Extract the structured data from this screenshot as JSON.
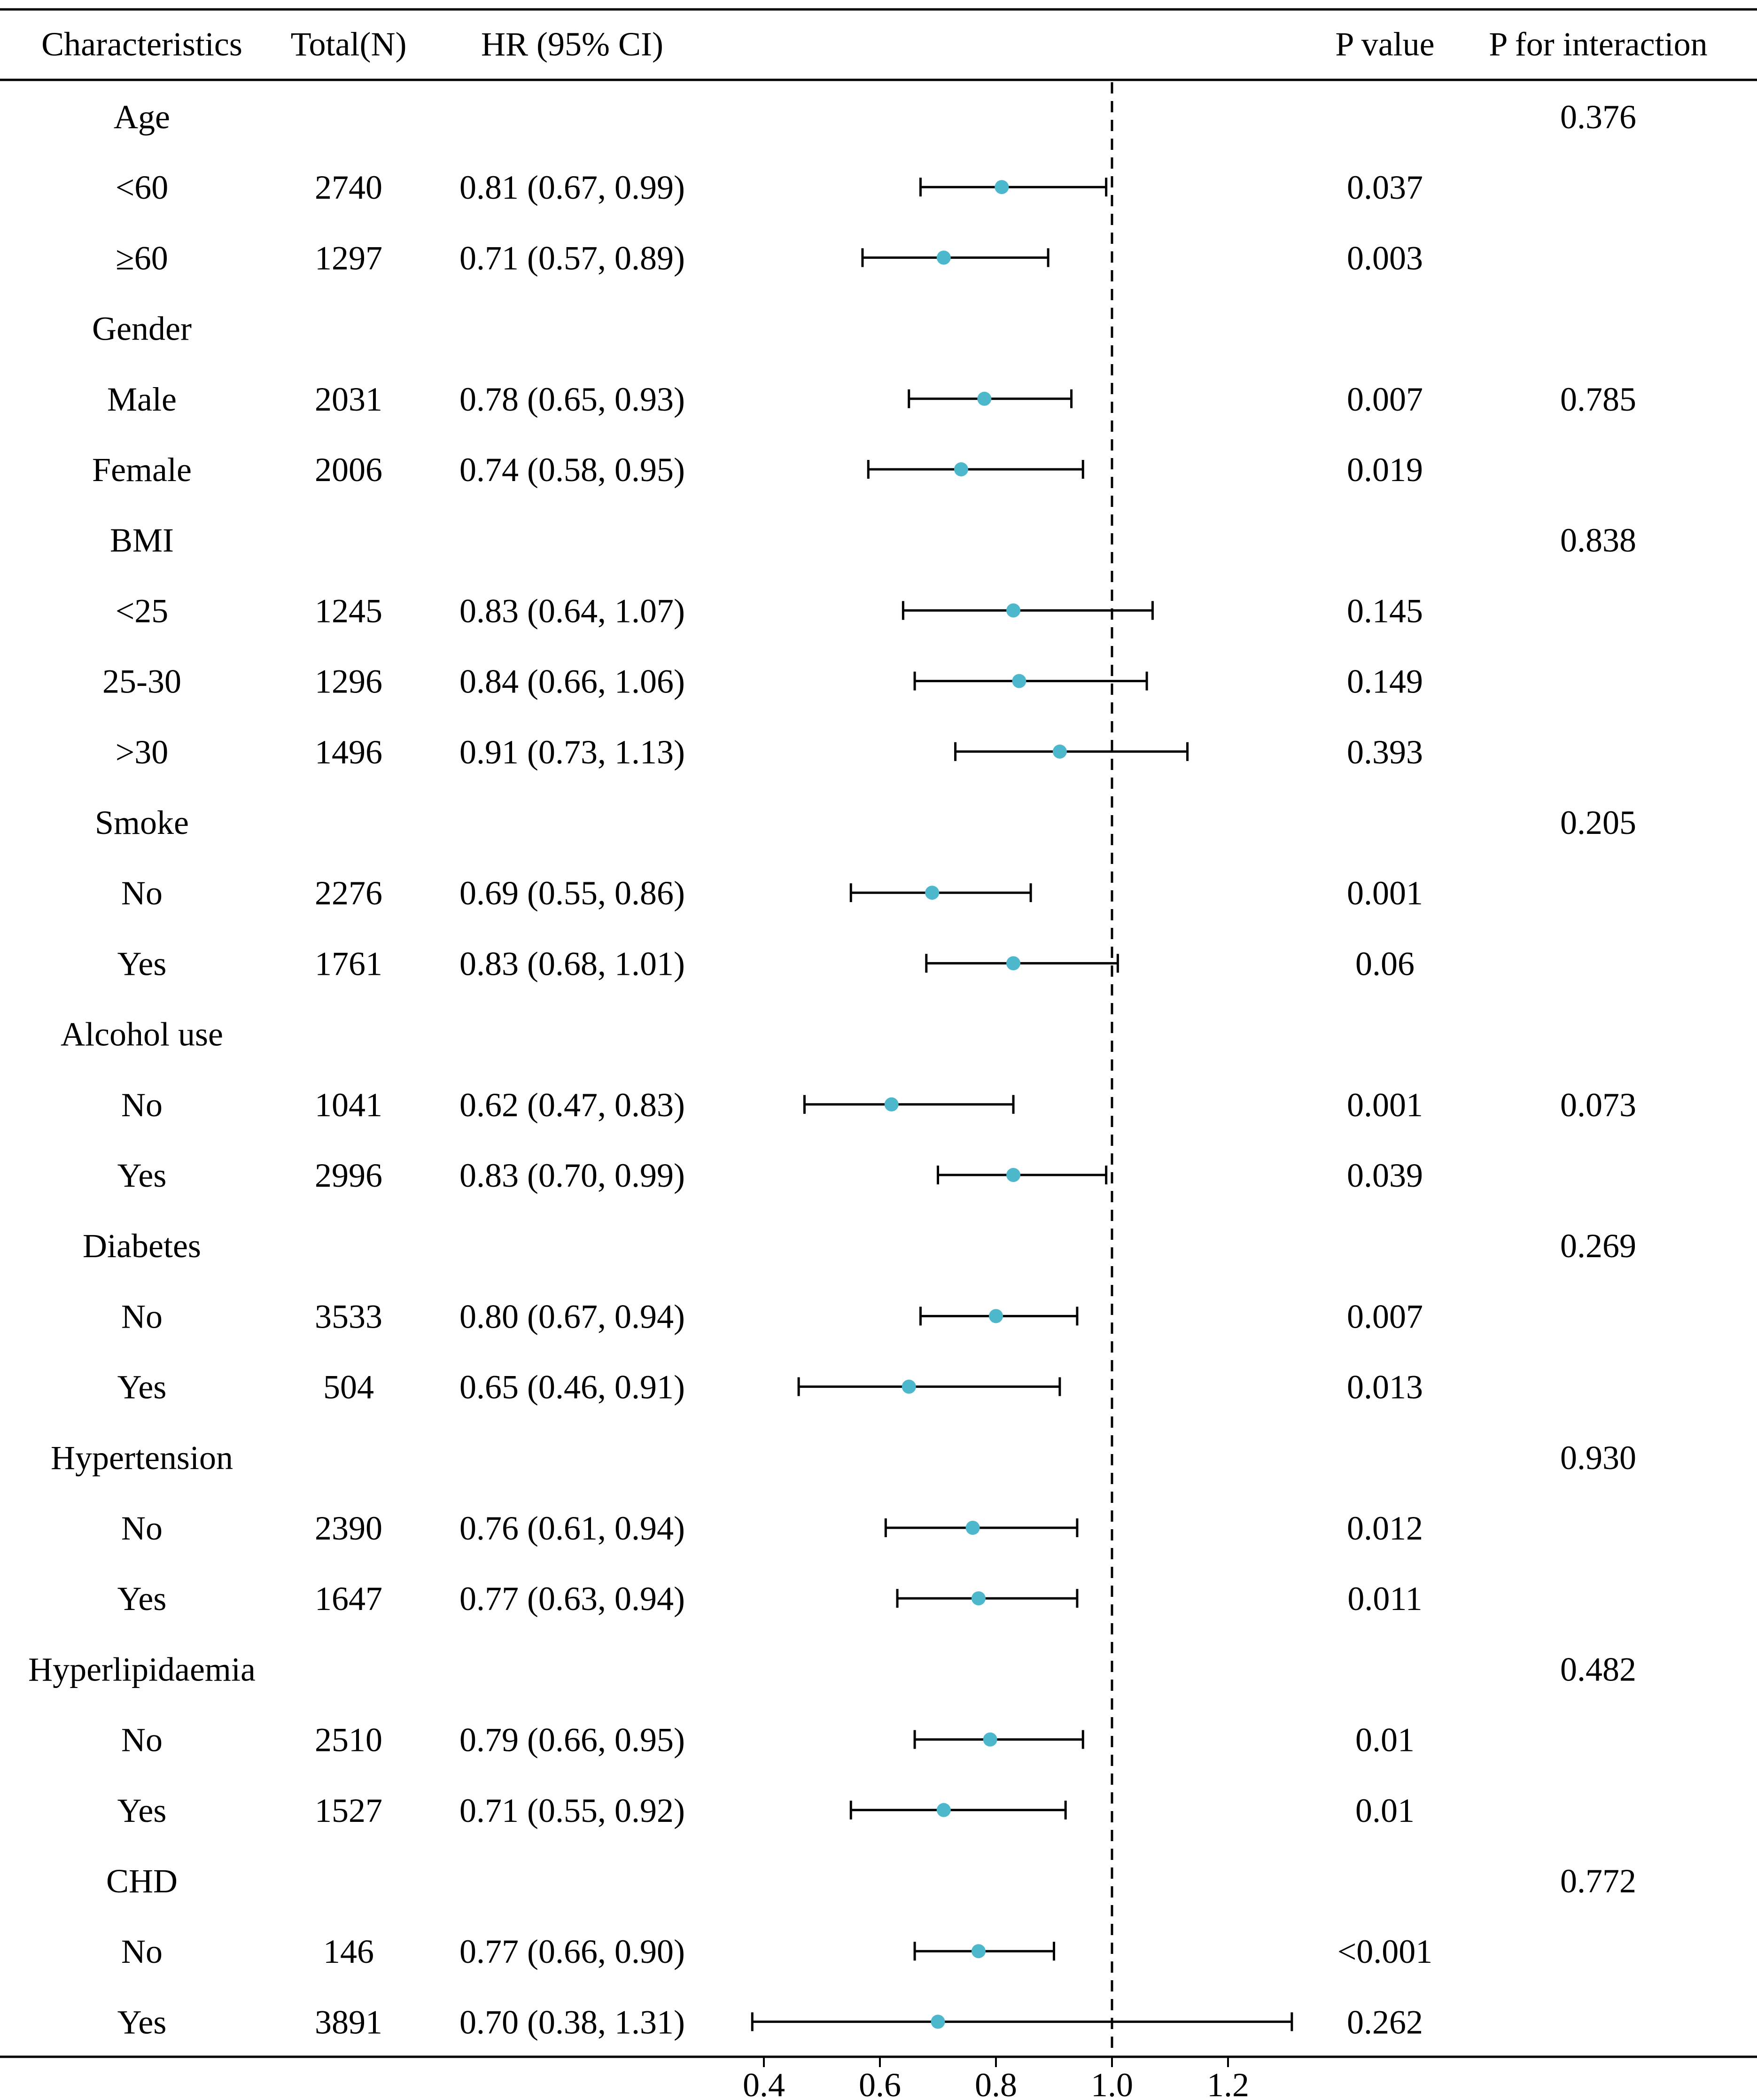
{
  "chart_data": {
    "type": "forest",
    "title": "",
    "columns": [
      "Characteristics",
      "Total(N)",
      "HR (95% CI)",
      "P value",
      "P for interaction"
    ],
    "reference_value": 1.0,
    "reference_label": "1.0",
    "x_ticks": [
      0.4,
      0.6,
      0.8,
      1.0,
      1.2
    ],
    "x_tick_labels": [
      "0.4",
      "0.6",
      "0.8",
      "1.0",
      "1.2"
    ],
    "xlim": [
      0.35,
      1.33
    ],
    "colors": {
      "point": "#4db8cc",
      "line": "#000000",
      "reference": "#000000"
    },
    "rows": [
      {
        "label": "Age",
        "group": true,
        "p_interaction": "0.376"
      },
      {
        "label": "<60",
        "n": "2740",
        "hr_text": "0.81 (0.67, 0.99)",
        "hr": 0.81,
        "lower": 0.67,
        "upper": 0.99,
        "p": "0.037"
      },
      {
        "label": "≥60",
        "n": "1297",
        "hr_text": "0.71 (0.57, 0.89)",
        "hr": 0.71,
        "lower": 0.57,
        "upper": 0.89,
        "p": "0.003"
      },
      {
        "label": "Gender",
        "group": true
      },
      {
        "label": "Male",
        "n": "2031",
        "hr_text": "0.78 (0.65, 0.93)",
        "hr": 0.78,
        "lower": 0.65,
        "upper": 0.93,
        "p": "0.007",
        "p_interaction": "0.785"
      },
      {
        "label": "Female",
        "n": "2006",
        "hr_text": "0.74 (0.58, 0.95)",
        "hr": 0.74,
        "lower": 0.58,
        "upper": 0.95,
        "p": "0.019"
      },
      {
        "label": "BMI",
        "group": true,
        "p_interaction": "0.838"
      },
      {
        "label": "<25",
        "n": "1245",
        "hr_text": "0.83 (0.64, 1.07)",
        "hr": 0.83,
        "lower": 0.64,
        "upper": 1.07,
        "p": "0.145"
      },
      {
        "label": "25-30",
        "n": "1296",
        "hr_text": "0.84 (0.66, 1.06)",
        "hr": 0.84,
        "lower": 0.66,
        "upper": 1.06,
        "p": "0.149"
      },
      {
        "label": ">30",
        "n": "1496",
        "hr_text": "0.91 (0.73, 1.13)",
        "hr": 0.91,
        "lower": 0.73,
        "upper": 1.13,
        "p": "0.393"
      },
      {
        "label": "Smoke",
        "group": true,
        "p_interaction": "0.205"
      },
      {
        "label": "No",
        "n": "2276",
        "hr_text": "0.69 (0.55, 0.86)",
        "hr": 0.69,
        "lower": 0.55,
        "upper": 0.86,
        "p": "0.001"
      },
      {
        "label": "Yes",
        "n": "1761",
        "hr_text": "0.83 (0.68, 1.01)",
        "hr": 0.83,
        "lower": 0.68,
        "upper": 1.01,
        "p": "0.06"
      },
      {
        "label": "Alcohol use",
        "group": true
      },
      {
        "label": "No",
        "n": "1041",
        "hr_text": "0.62 (0.47, 0.83)",
        "hr": 0.62,
        "lower": 0.47,
        "upper": 0.83,
        "p": "0.001",
        "p_interaction": "0.073"
      },
      {
        "label": "Yes",
        "n": "2996",
        "hr_text": "0.83 (0.70, 0.99)",
        "hr": 0.83,
        "lower": 0.7,
        "upper": 0.99,
        "p": "0.039"
      },
      {
        "label": "Diabetes",
        "group": true,
        "p_interaction": "0.269"
      },
      {
        "label": "No",
        "n": "3533",
        "hr_text": "0.80 (0.67, 0.94)",
        "hr": 0.8,
        "lower": 0.67,
        "upper": 0.94,
        "p": "0.007"
      },
      {
        "label": "Yes",
        "n": "504",
        "hr_text": "0.65 (0.46, 0.91)",
        "hr": 0.65,
        "lower": 0.46,
        "upper": 0.91,
        "p": "0.013"
      },
      {
        "label": "Hypertension",
        "group": true,
        "p_interaction": "0.930"
      },
      {
        "label": "No",
        "n": "2390",
        "hr_text": "0.76 (0.61, 0.94)",
        "hr": 0.76,
        "lower": 0.61,
        "upper": 0.94,
        "p": "0.012"
      },
      {
        "label": "Yes",
        "n": "1647",
        "hr_text": "0.77 (0.63, 0.94)",
        "hr": 0.77,
        "lower": 0.63,
        "upper": 0.94,
        "p": "0.011"
      },
      {
        "label": "Hyperlipidaemia",
        "group": true,
        "p_interaction": "0.482"
      },
      {
        "label": "No",
        "n": "2510",
        "hr_text": "0.79 (0.66, 0.95)",
        "hr": 0.79,
        "lower": 0.66,
        "upper": 0.95,
        "p": "0.01"
      },
      {
        "label": "Yes",
        "n": "1527",
        "hr_text": "0.71 (0.55, 0.92)",
        "hr": 0.71,
        "lower": 0.55,
        "upper": 0.92,
        "p": "0.01"
      },
      {
        "label": "CHD",
        "group": true,
        "p_interaction": "0.772"
      },
      {
        "label": "No",
        "n": "146",
        "hr_text": "0.77 (0.66, 0.90)",
        "hr": 0.77,
        "lower": 0.66,
        "upper": 0.9,
        "p": "<0.001"
      },
      {
        "label": "Yes",
        "n": "3891",
        "hr_text": "0.70 (0.38, 1.31)",
        "hr": 0.7,
        "lower": 0.38,
        "upper": 1.31,
        "p": "0.262"
      }
    ]
  }
}
